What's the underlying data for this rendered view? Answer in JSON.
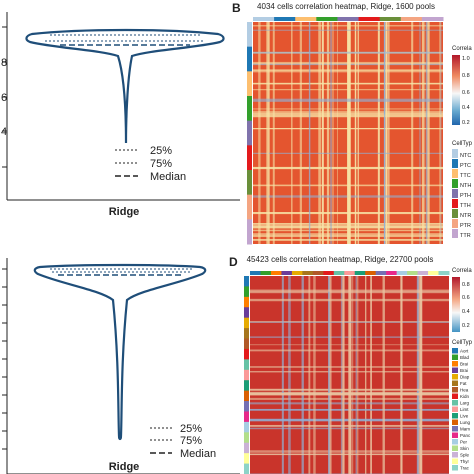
{
  "panels": {
    "b_letter": "B",
    "d_letter": "D"
  },
  "chart_data": [
    {
      "type": "violin",
      "panel": "A",
      "xlabel": "Ridge",
      "y_tick_labels": [
        "",
        "8",
        "6",
        "4",
        ""
      ],
      "legend": [
        "25%",
        "75%",
        "Median"
      ],
      "color": "#1f4e79"
    },
    {
      "type": "heatmap",
      "panel": "B",
      "title": "4034 cells correlation heatmap, Ridge, 1600 pools",
      "colorbar_title": "Correla",
      "colorbar_ticks": [
        "1.0",
        "0.8",
        "0.6",
        "0.4",
        "0.2"
      ],
      "legend_title": "CellTyp",
      "legend_items": [
        {
          "label": "NTC",
          "color": "#b3cde3"
        },
        {
          "label": "PTC",
          "color": "#1f78b4"
        },
        {
          "label": "TTC",
          "color": "#fdbf6f"
        },
        {
          "label": "NTH",
          "color": "#33a02c"
        },
        {
          "label": "PTH",
          "color": "#8073ac"
        },
        {
          "label": "TTH",
          "color": "#e31a1c"
        },
        {
          "label": "NTR",
          "color": "#6a8f3a"
        },
        {
          "label": "PTR",
          "color": "#f4a582"
        },
        {
          "label": "TTR",
          "color": "#c2a5cf"
        }
      ]
    },
    {
      "type": "violin",
      "panel": "C",
      "xlabel": "Ridge",
      "legend": [
        "25%",
        "75%",
        "Median"
      ],
      "color": "#1f4e79"
    },
    {
      "type": "heatmap",
      "panel": "D",
      "title": "45423 cells correlation heatmap, Ridge, 22700 pools",
      "colorbar_title": "Correla",
      "colorbar_ticks": [
        "0.8",
        "0.6",
        "0.4",
        "0.2"
      ],
      "legend_title": "CellTyp",
      "legend_items": [
        {
          "label": "Aort",
          "color": "#1f78b4"
        },
        {
          "label": "Blad",
          "color": "#33a02c"
        },
        {
          "label": "Brai",
          "color": "#ff7f00"
        },
        {
          "label": "Brai",
          "color": "#6a3d9a"
        },
        {
          "label": "Diap",
          "color": "#e6ab02"
        },
        {
          "label": "Fat",
          "color": "#a6761d"
        },
        {
          "label": "Hea",
          "color": "#b15928"
        },
        {
          "label": "Kidn",
          "color": "#e31a1c"
        },
        {
          "label": "Larg",
          "color": "#66c2a5"
        },
        {
          "label": "Limt",
          "color": "#fb9a99"
        },
        {
          "label": "Live",
          "color": "#1b9e77"
        },
        {
          "label": "Lung",
          "color": "#d95f02"
        },
        {
          "label": "Mam",
          "color": "#7570b3"
        },
        {
          "label": "Panc",
          "color": "#e7298a"
        },
        {
          "label": "Per",
          "color": "#a6cee3"
        },
        {
          "label": "Skin",
          "color": "#b2df8a"
        },
        {
          "label": "Sple",
          "color": "#cab2d6"
        },
        {
          "label": "Thyr",
          "color": "#ffff99"
        },
        {
          "label": "Trac",
          "color": "#8dd3c7"
        }
      ]
    }
  ]
}
